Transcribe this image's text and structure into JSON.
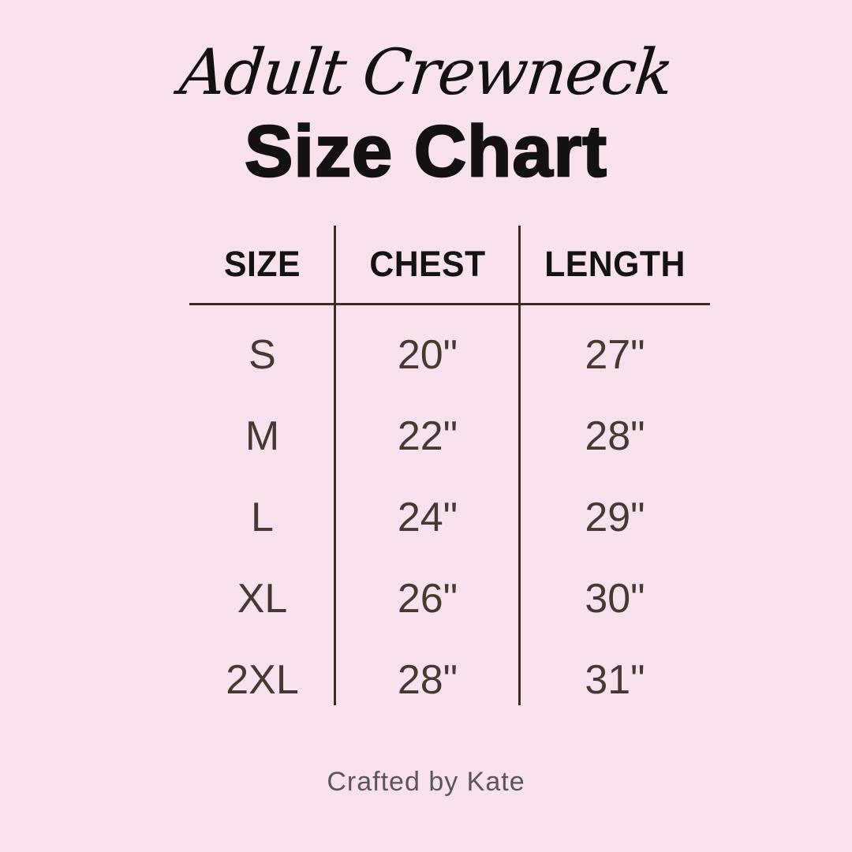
{
  "page": {
    "background_color": "#f7e2ee",
    "title_color": "#141114",
    "value_text_color": "#473931",
    "rule_color": "#3f2d24",
    "footer_color": "#5d5460"
  },
  "header": {
    "subtitle": "Adult Crewneck",
    "title": "Size Chart"
  },
  "table": {
    "columns": [
      "SIZE",
      "CHEST",
      "LENGTH"
    ],
    "rows": [
      [
        "S",
        "20\"",
        "27\""
      ],
      [
        "M",
        "22\"",
        "28\""
      ],
      [
        "L",
        "24\"",
        "29\""
      ],
      [
        "XL",
        "26\"",
        "30\""
      ],
      [
        "2XL",
        "28\"",
        "31\""
      ]
    ]
  },
  "footer": {
    "credit": "Crafted by Kate"
  },
  "chart_data": {
    "type": "table",
    "title": "Adult Crewneck Size Chart",
    "columns": [
      "SIZE",
      "CHEST",
      "LENGTH"
    ],
    "units": "inches",
    "rows": [
      {
        "size": "S",
        "chest_in": 20,
        "length_in": 27
      },
      {
        "size": "M",
        "chest_in": 22,
        "length_in": 28
      },
      {
        "size": "L",
        "chest_in": 24,
        "length_in": 29
      },
      {
        "size": "XL",
        "chest_in": 26,
        "length_in": 30
      },
      {
        "size": "2XL",
        "chest_in": 28,
        "length_in": 31
      }
    ]
  }
}
